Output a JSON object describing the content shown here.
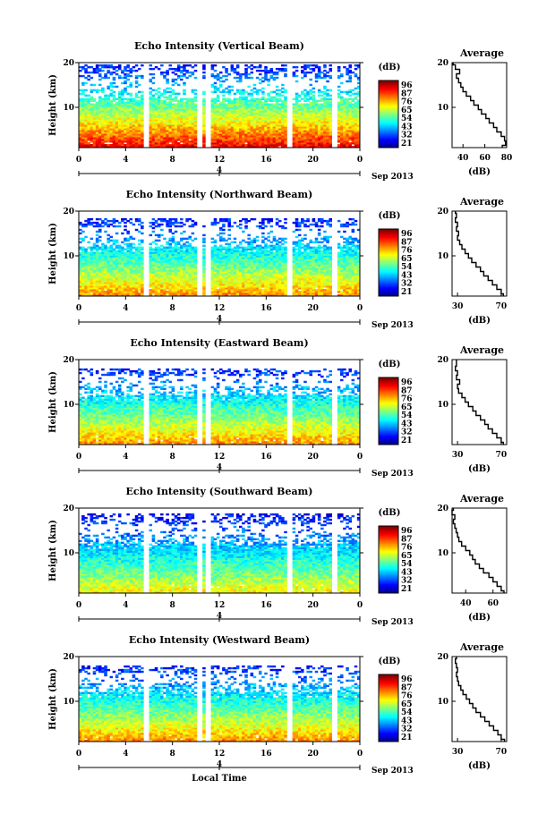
{
  "figure": {
    "xlabel": "Local Time",
    "date_label": "Sep 2013",
    "colorbar_unit": "(dB)",
    "colorbar_ticks": [
      "96",
      "87",
      "76",
      "65",
      "54",
      "43",
      "32",
      "21"
    ],
    "colorbar_ticks_east": [
      "96",
      "87",
      "76",
      "65",
      "54",
      "43",
      "32",
      "21"
    ],
    "colorbar_ticks_south": [
      "96",
      "87",
      "76",
      "65",
      "54",
      "43",
      "32",
      "21"
    ],
    "colorbar_ticks_west": [
      "96",
      "87",
      "76",
      "65",
      "54",
      "43",
      "32",
      "21"
    ]
  },
  "chart_data": [
    {
      "type": "heatmap",
      "title": "Echo Intensity (Vertical Beam)",
      "ylabel": "Height (km)",
      "xlabel": "",
      "x_ticks": [
        "0",
        "4",
        "8",
        "12",
        "16",
        "20",
        "0"
      ],
      "day_tick": "4",
      "y_ticks": [
        "20",
        "10"
      ],
      "ylim": [
        1,
        20
      ],
      "xlim": [
        0,
        24
      ],
      "colorbar": {
        "unit": "(dB)",
        "ticks": [
          "96",
          "87",
          "76",
          "65",
          "54",
          "43",
          "32",
          "21"
        ],
        "range": [
          21,
          96
        ]
      },
      "data_gaps_hours": [
        [
          5.5,
          6.0
        ],
        [
          10.2,
          10.5
        ],
        [
          10.8,
          11.2
        ],
        [
          11.4,
          11.6
        ],
        [
          17.8,
          18.2
        ],
        [
          21.7,
          22.0
        ]
      ],
      "surface_db": 90,
      "top_db": 30,
      "cutoff_km": 19.5,
      "profile": {
        "title": "Average",
        "xlabel": "(dB)",
        "x_ticks": [
          "40",
          "60",
          "80"
        ],
        "y_ticks": [
          "20",
          "10"
        ],
        "xlim": [
          30,
          80
        ],
        "heights_km": [
          1,
          2,
          3,
          4,
          5,
          6,
          7,
          8,
          9,
          10,
          11,
          12,
          13,
          14,
          15,
          16,
          17,
          18,
          19,
          20
        ],
        "avg_db": [
          76,
          79,
          78,
          75,
          71,
          68,
          64,
          61,
          57,
          54,
          50,
          47,
          43,
          40,
          38,
          36,
          34,
          37,
          33,
          31
        ]
      }
    },
    {
      "type": "heatmap",
      "title": "Echo Intensity (Northward Beam)",
      "ylabel": "Height (km)",
      "xlabel": "",
      "x_ticks": [
        "0",
        "4",
        "8",
        "12",
        "16",
        "20",
        "0"
      ],
      "day_tick": "4",
      "y_ticks": [
        "20",
        "10"
      ],
      "ylim": [
        1,
        20
      ],
      "xlim": [
        0,
        24
      ],
      "colorbar": {
        "unit": "(dB)",
        "ticks": [
          "96",
          "87",
          "76",
          "65",
          "54",
          "43",
          "32",
          "21"
        ],
        "range": [
          21,
          96
        ]
      },
      "data_gaps_hours": [
        [
          5.5,
          6.0
        ],
        [
          10.2,
          10.5
        ],
        [
          10.8,
          11.2
        ],
        [
          11.4,
          11.6
        ],
        [
          17.8,
          18.2
        ],
        [
          21.7,
          22.0
        ]
      ],
      "surface_db": 78,
      "top_db": 28,
      "cutoff_km": 18.5,
      "profile": {
        "title": "Average",
        "xlabel": "(dB)",
        "x_ticks": [
          "30",
          "70"
        ],
        "y_ticks": [
          "20",
          "10"
        ],
        "xlim": [
          25,
          75
        ],
        "heights_km": [
          1,
          2,
          3,
          4,
          5,
          6,
          7,
          8,
          9,
          10,
          11,
          12,
          13,
          14,
          15,
          16,
          17,
          18,
          19,
          20
        ],
        "avg_db": [
          72,
          70,
          66,
          62,
          58,
          54,
          51,
          47,
          43,
          40,
          37,
          34,
          32,
          30,
          31,
          29,
          30,
          28,
          29,
          28
        ]
      }
    },
    {
      "type": "heatmap",
      "title": "Echo Intensity (Eastward Beam)",
      "ylabel": "Height (km)",
      "xlabel": "",
      "x_ticks": [
        "0",
        "4",
        "8",
        "12",
        "16",
        "20",
        "0"
      ],
      "day_tick": "4",
      "y_ticks": [
        "20",
        "10"
      ],
      "ylim": [
        1,
        20
      ],
      "xlim": [
        0,
        24
      ],
      "colorbar": {
        "unit": "(dB)",
        "ticks": [
          "96",
          "87",
          "76",
          "65",
          "54",
          "43",
          "32",
          "21"
        ],
        "range": [
          21,
          96
        ]
      },
      "data_gaps_hours": [
        [
          5.5,
          6.0
        ],
        [
          10.2,
          10.5
        ],
        [
          10.8,
          11.2
        ],
        [
          11.4,
          11.6
        ],
        [
          17.8,
          18.2
        ],
        [
          21.7,
          22.0
        ]
      ],
      "surface_db": 78,
      "top_db": 28,
      "cutoff_km": 18.0,
      "profile": {
        "title": "Average",
        "xlabel": "(dB)",
        "x_ticks": [
          "30",
          "70"
        ],
        "y_ticks": [
          "20",
          "10"
        ],
        "xlim": [
          25,
          75
        ],
        "heights_km": [
          1,
          2,
          3,
          4,
          5,
          6,
          7,
          8,
          9,
          10,
          11,
          12,
          13,
          14,
          15,
          16,
          17,
          18,
          19,
          20
        ],
        "avg_db": [
          72,
          70,
          66,
          62,
          58,
          55,
          51,
          47,
          44,
          40,
          37,
          34,
          31,
          30,
          32,
          29,
          30,
          28,
          29,
          29
        ]
      }
    },
    {
      "type": "heatmap",
      "title": "Echo Intensity (Southward Beam)",
      "ylabel": "Height (km)",
      "xlabel": "",
      "x_ticks": [
        "0",
        "4",
        "8",
        "12",
        "16",
        "20",
        "0"
      ],
      "day_tick": "4",
      "y_ticks": [
        "20",
        "10"
      ],
      "ylim": [
        1,
        20
      ],
      "xlim": [
        0,
        24
      ],
      "colorbar": {
        "unit": "(dB)",
        "ticks": [
          "96",
          "87",
          "76",
          "65",
          "54",
          "43",
          "32",
          "21"
        ],
        "range": [
          21,
          96
        ]
      },
      "data_gaps_hours": [
        [
          5.5,
          6.0
        ],
        [
          10.2,
          10.5
        ],
        [
          10.8,
          11.2
        ],
        [
          11.4,
          11.6
        ],
        [
          17.8,
          18.2
        ],
        [
          21.7,
          22.0
        ]
      ],
      "surface_db": 70,
      "top_db": 28,
      "cutoff_km": 19.0,
      "profile": {
        "title": "Average",
        "xlabel": "(dB)",
        "x_ticks": [
          "40",
          "60"
        ],
        "y_ticks": [
          "20",
          "10"
        ],
        "xlim": [
          30,
          70
        ],
        "heights_km": [
          1,
          2,
          3,
          4,
          5,
          6,
          7,
          8,
          9,
          10,
          11,
          12,
          13,
          14,
          15,
          16,
          17,
          18,
          19,
          20
        ],
        "avg_db": [
          68,
          66,
          63,
          60,
          57,
          53,
          50,
          47,
          45,
          43,
          40,
          37,
          35,
          34,
          33,
          32,
          31,
          32,
          30,
          31
        ]
      }
    },
    {
      "type": "heatmap",
      "title": "Echo Intensity (Westward Beam)",
      "ylabel": "Height (km)",
      "xlabel": "Local Time",
      "x_ticks": [
        "0",
        "4",
        "8",
        "12",
        "16",
        "20",
        "0"
      ],
      "day_tick": "4",
      "y_ticks": [
        "20",
        "10"
      ],
      "ylim": [
        1,
        20
      ],
      "xlim": [
        0,
        24
      ],
      "colorbar": {
        "unit": "(dB)",
        "ticks": [
          "96",
          "87",
          "76",
          "65",
          "54",
          "43",
          "32",
          "21"
        ],
        "range": [
          21,
          96
        ]
      },
      "data_gaps_hours": [
        [
          5.5,
          6.0
        ],
        [
          10.2,
          10.5
        ],
        [
          10.8,
          11.2
        ],
        [
          11.4,
          11.6
        ],
        [
          17.8,
          18.2
        ],
        [
          21.7,
          22.0
        ]
      ],
      "surface_db": 78,
      "top_db": 28,
      "cutoff_km": 18.2,
      "profile": {
        "title": "Average",
        "xlabel": "(dB)",
        "x_ticks": [
          "30",
          "70"
        ],
        "y_ticks": [
          "20",
          "10"
        ],
        "xlim": [
          25,
          75
        ],
        "heights_km": [
          1,
          2,
          3,
          4,
          5,
          6,
          7,
          8,
          9,
          10,
          11,
          12,
          13,
          14,
          15,
          16,
          17,
          18,
          19,
          20
        ],
        "avg_db": [
          73,
          70,
          67,
          63,
          59,
          55,
          51,
          47,
          44,
          41,
          38,
          35,
          33,
          31,
          30,
          29,
          30,
          29,
          28,
          29
        ]
      }
    }
  ]
}
